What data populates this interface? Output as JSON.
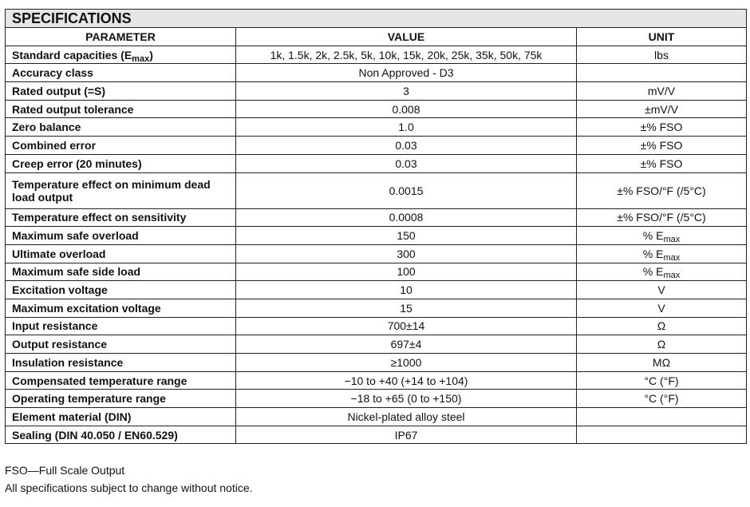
{
  "title": "SPECIFICATIONS",
  "headers": {
    "parameter": "PARAMETER",
    "value": "VALUE",
    "unit": "UNIT"
  },
  "rows": [
    {
      "param": "Standard capacities (E",
      "param_sub": "max",
      "param_end": ")",
      "value": "1k, 1.5k, 2k, 2.5k, 5k, 10k, 15k, 20k, 25k, 35k, 50k, 75k",
      "unit": "lbs"
    },
    {
      "param": "Accuracy class",
      "value": "Non Approved - D3",
      "unit": ""
    },
    {
      "param": "Rated output (=S)",
      "value": "3",
      "unit": "mV/V"
    },
    {
      "param": "Rated output tolerance",
      "value": "0.008",
      "unit": "±mV/V"
    },
    {
      "param": "Zero balance",
      "value": "1.0",
      "unit": "±% FSO"
    },
    {
      "param": "Combined error",
      "value": "0.03",
      "unit": "±% FSO"
    },
    {
      "param": "Creep error (20 minutes)",
      "value": "0.03",
      "unit": "±% FSO"
    },
    {
      "param": "Temperature effect on minimum dead load output",
      "value": "0.0015",
      "unit": "±% FSO/°F (/5°C)"
    },
    {
      "param": "Temperature effect on sensitivity",
      "value": "0.0008",
      "unit": "±% FSO/°F (/5°C)"
    },
    {
      "param": "Maximum safe overload",
      "value": "150",
      "unit": "% E",
      "unit_sub": "max"
    },
    {
      "param": "Ultimate overload",
      "value": "300",
      "unit": "% E",
      "unit_sub": "max"
    },
    {
      "param": "Maximum safe side load",
      "value": "100",
      "unit": "% E",
      "unit_sub": "max"
    },
    {
      "param": "Excitation voltage",
      "value": "10",
      "unit": "V"
    },
    {
      "param": "Maximum excitation voltage",
      "value": "15",
      "unit": "V"
    },
    {
      "param": "Input resistance",
      "value": "700±14",
      "unit": "Ω"
    },
    {
      "param": "Output resistance",
      "value": "697±4",
      "unit": "Ω"
    },
    {
      "param": "Insulation resistance",
      "value": "≥1000",
      "unit": "MΩ"
    },
    {
      "param": "Compensated temperature range",
      "value": "−10 to +40 (+14 to +104)",
      "unit": "°C (°F)"
    },
    {
      "param": "Operating temperature range",
      "value": "−18 to +65 (0 to +150)",
      "unit": "°C (°F)"
    },
    {
      "param": "Element material (DIN)",
      "value": "Nickel-plated alloy steel",
      "unit": ""
    },
    {
      "param": "Sealing (DIN 40.050 / EN60.529)",
      "value": "IP67",
      "unit": ""
    }
  ],
  "notes": [
    "FSO—Full Scale Output",
    "All specifications subject to change without notice."
  ]
}
